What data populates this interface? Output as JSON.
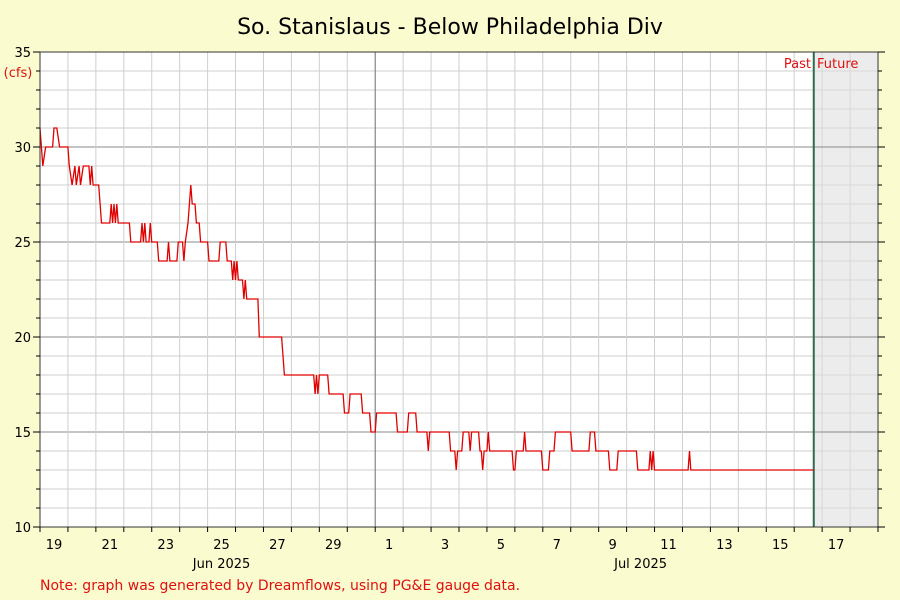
{
  "chart_data": {
    "type": "line",
    "title": "So. Stanislaus - Below Philadelphia Div",
    "ylabel": "(cfs)",
    "xlabel": "",
    "ylim": [
      10,
      35
    ],
    "xlim": [
      0,
      30
    ],
    "grid": true,
    "y_ticks": [
      "10",
      "15",
      "20",
      "25",
      "30",
      "35"
    ],
    "x_tick_labels": [
      {
        "x": 0.5,
        "label": "19"
      },
      {
        "x": 2.5,
        "label": "21"
      },
      {
        "x": 4.5,
        "label": "23"
      },
      {
        "x": 6.5,
        "label": "25"
      },
      {
        "x": 8.5,
        "label": "27"
      },
      {
        "x": 10.5,
        "label": "29"
      },
      {
        "x": 12.5,
        "label": "1"
      },
      {
        "x": 14.5,
        "label": "3"
      },
      {
        "x": 16.5,
        "label": "5"
      },
      {
        "x": 18.5,
        "label": "7"
      },
      {
        "x": 20.5,
        "label": "9"
      },
      {
        "x": 22.5,
        "label": "11"
      },
      {
        "x": 24.5,
        "label": "13"
      },
      {
        "x": 26.5,
        "label": "15"
      },
      {
        "x": 28.5,
        "label": "17"
      }
    ],
    "month_labels": [
      {
        "x": 6.5,
        "label": "Jun 2025"
      },
      {
        "x": 21.5,
        "label": "Jul 2025"
      }
    ],
    "month_boundary_x": 12,
    "now_x": 27.7,
    "past_label": "Past",
    "future_label": "Future",
    "line_color": "#e00000",
    "now_line_color": "#2e6b4f",
    "future_fill": "#ececec",
    "series": [
      {
        "values": [
          [
            0,
            31
          ],
          [
            0.05,
            30
          ],
          [
            0.1,
            29
          ],
          [
            0.2,
            30
          ],
          [
            0.45,
            30
          ],
          [
            0.5,
            31
          ],
          [
            0.6,
            31
          ],
          [
            0.7,
            30
          ],
          [
            1.0,
            30
          ],
          [
            1.05,
            29
          ],
          [
            1.15,
            28
          ],
          [
            1.25,
            29
          ],
          [
            1.3,
            28
          ],
          [
            1.4,
            29
          ],
          [
            1.45,
            28
          ],
          [
            1.55,
            29
          ],
          [
            1.75,
            29
          ],
          [
            1.8,
            28
          ],
          [
            1.85,
            29
          ],
          [
            1.9,
            28
          ],
          [
            2.1,
            28
          ],
          [
            2.15,
            27
          ],
          [
            2.2,
            26
          ],
          [
            2.5,
            26
          ],
          [
            2.55,
            27
          ],
          [
            2.6,
            26
          ],
          [
            2.65,
            27
          ],
          [
            2.7,
            26
          ],
          [
            2.75,
            27
          ],
          [
            2.8,
            26
          ],
          [
            3.2,
            26
          ],
          [
            3.25,
            25
          ],
          [
            3.6,
            25
          ],
          [
            3.65,
            26
          ],
          [
            3.7,
            25
          ],
          [
            3.75,
            26
          ],
          [
            3.8,
            25
          ],
          [
            3.9,
            25
          ],
          [
            3.95,
            26
          ],
          [
            4.0,
            25
          ],
          [
            4.2,
            25
          ],
          [
            4.25,
            24
          ],
          [
            4.55,
            24
          ],
          [
            4.6,
            25
          ],
          [
            4.65,
            24
          ],
          [
            4.9,
            24
          ],
          [
            4.95,
            25
          ],
          [
            5.1,
            25
          ],
          [
            5.15,
            24
          ],
          [
            5.2,
            25
          ],
          [
            5.3,
            26
          ],
          [
            5.35,
            27
          ],
          [
            5.4,
            28
          ],
          [
            5.45,
            27
          ],
          [
            5.55,
            27
          ],
          [
            5.6,
            26
          ],
          [
            5.7,
            26
          ],
          [
            5.75,
            25
          ],
          [
            6.0,
            25
          ],
          [
            6.05,
            24
          ],
          [
            6.4,
            24
          ],
          [
            6.45,
            25
          ],
          [
            6.65,
            25
          ],
          [
            6.7,
            24
          ],
          [
            6.85,
            24
          ],
          [
            6.9,
            23
          ],
          [
            6.95,
            24
          ],
          [
            7.0,
            23
          ],
          [
            7.05,
            24
          ],
          [
            7.1,
            23
          ],
          [
            7.25,
            23
          ],
          [
            7.3,
            22
          ],
          [
            7.35,
            23
          ],
          [
            7.4,
            22
          ],
          [
            7.8,
            22
          ],
          [
            7.85,
            20
          ],
          [
            8.65,
            20
          ],
          [
            8.7,
            19
          ],
          [
            8.75,
            18
          ],
          [
            9.8,
            18
          ],
          [
            9.85,
            17
          ],
          [
            9.9,
            18
          ],
          [
            9.95,
            17
          ],
          [
            10.0,
            18
          ],
          [
            10.3,
            18
          ],
          [
            10.35,
            17
          ],
          [
            10.85,
            17
          ],
          [
            10.9,
            16
          ],
          [
            11.05,
            16
          ],
          [
            11.1,
            17
          ],
          [
            11.5,
            17
          ],
          [
            11.55,
            16
          ],
          [
            11.8,
            16
          ],
          [
            11.85,
            15
          ],
          [
            12.0,
            15
          ],
          [
            12.05,
            16
          ],
          [
            12.75,
            16
          ],
          [
            12.8,
            15
          ],
          [
            13.15,
            15
          ],
          [
            13.2,
            16
          ],
          [
            13.45,
            16
          ],
          [
            13.5,
            15
          ],
          [
            13.6,
            15
          ],
          [
            13.65,
            15
          ],
          [
            13.85,
            15
          ],
          [
            13.9,
            14
          ],
          [
            13.95,
            15
          ],
          [
            14.65,
            15
          ],
          [
            14.7,
            14
          ],
          [
            14.85,
            14
          ],
          [
            14.9,
            13
          ],
          [
            14.95,
            14
          ],
          [
            15.1,
            14
          ],
          [
            15.15,
            15
          ],
          [
            15.35,
            15
          ],
          [
            15.4,
            14
          ],
          [
            15.45,
            15
          ],
          [
            15.7,
            15
          ],
          [
            15.75,
            14
          ],
          [
            15.8,
            14
          ],
          [
            15.85,
            13
          ],
          [
            15.9,
            14
          ],
          [
            16.0,
            14
          ],
          [
            16.05,
            15
          ],
          [
            16.1,
            14
          ],
          [
            16.9,
            14
          ],
          [
            16.95,
            13
          ],
          [
            17.0,
            13
          ],
          [
            17.05,
            14
          ],
          [
            17.3,
            14
          ],
          [
            17.35,
            15
          ],
          [
            17.4,
            14
          ],
          [
            17.95,
            14
          ],
          [
            18.0,
            13
          ],
          [
            18.2,
            13
          ],
          [
            18.25,
            14
          ],
          [
            18.4,
            14
          ],
          [
            18.45,
            15
          ],
          [
            19.0,
            15
          ],
          [
            19.05,
            14
          ],
          [
            19.65,
            14
          ],
          [
            19.7,
            15
          ],
          [
            19.85,
            15
          ],
          [
            19.9,
            14
          ],
          [
            20.35,
            14
          ],
          [
            20.4,
            13
          ],
          [
            20.65,
            13
          ],
          [
            20.7,
            14
          ],
          [
            21.35,
            14
          ],
          [
            21.4,
            13
          ],
          [
            21.8,
            13
          ],
          [
            21.85,
            14
          ],
          [
            21.9,
            13
          ],
          [
            21.95,
            14
          ],
          [
            22.0,
            13
          ],
          [
            23.2,
            13
          ],
          [
            23.25,
            14
          ],
          [
            23.3,
            13
          ],
          [
            27.7,
            13
          ]
        ]
      }
    ]
  },
  "note": "Note: graph was generated by Dreamflows, using PG&E gauge data."
}
